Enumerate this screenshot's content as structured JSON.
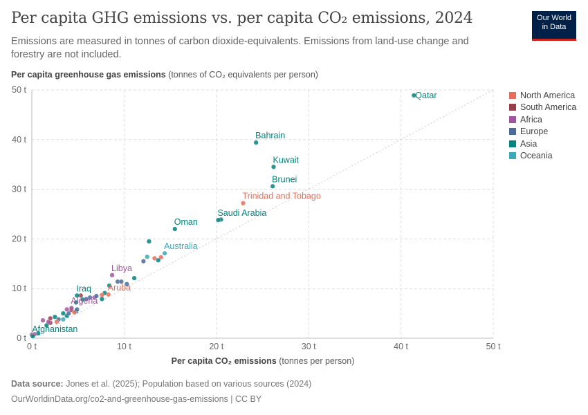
{
  "title": "Per capita GHG emissions vs. per capita CO₂ emissions, 2024",
  "subtitle": "Emissions are measured in tonnes of carbon dioxide-equivalents. Emissions from land-use change and forestry are not included.",
  "logo": {
    "line1": "Our World",
    "line2": "in Data"
  },
  "footer": {
    "source_label": "Data source:",
    "source": " Jones et al. (2025); Population based on various sources (2024)",
    "url": "OurWorldinData.org/co2-and-greenhouse-gas-emissions | CC BY"
  },
  "chart_data": {
    "type": "scatter",
    "title": "Per capita GHG emissions vs. per capita CO₂ emissions, 2024",
    "ylabel_bold": "Per capita greenhouse gas emissions",
    "ylabel_rest": " (tonnes of CO₂ equivalents per person)",
    "xlabel_bold": "Per capita CO₂ emissions",
    "xlabel_rest": " (tonnes per person)",
    "xlim": [
      0,
      50
    ],
    "ylim": [
      0,
      50
    ],
    "xticks": [
      "0 t",
      "10 t",
      "20 t",
      "30 t",
      "40 t",
      "50 t"
    ],
    "yticks": [
      "0 t",
      "10 t",
      "20 t",
      "30 t",
      "40 t",
      "50 t"
    ],
    "grid": true,
    "reference_line": "y = x (dotted)",
    "legend_position": "right",
    "regions": [
      {
        "name": "North America",
        "color": "#e56e5a"
      },
      {
        "name": "South America",
        "color": "#9a3c4a"
      },
      {
        "name": "Africa",
        "color": "#a2559c"
      },
      {
        "name": "Europe",
        "color": "#4c6a9c"
      },
      {
        "name": "Asia",
        "color": "#00847e"
      },
      {
        "name": "Oceania",
        "color": "#38aaba"
      }
    ],
    "points": [
      {
        "label": "Qatar",
        "region": "Asia",
        "x": 41.4,
        "y": 48.9
      },
      {
        "label": "Bahrain",
        "region": "Asia",
        "x": 24.3,
        "y": 39.4
      },
      {
        "label": "Kuwait",
        "region": "Asia",
        "x": 26.2,
        "y": 34.5
      },
      {
        "label": "Brunei",
        "region": "Asia",
        "x": 26.1,
        "y": 30.6
      },
      {
        "label": "Trinidad and Tobago",
        "region": "North America",
        "x": 22.9,
        "y": 27.2
      },
      {
        "label": "Saudi Arabia",
        "region": "Asia",
        "x": 20.2,
        "y": 23.8
      },
      {
        "label": "",
        "region": "Asia",
        "x": 20.5,
        "y": 23.9
      },
      {
        "label": "Oman",
        "region": "Asia",
        "x": 15.5,
        "y": 22.0
      },
      {
        "label": "Australia",
        "region": "Oceania",
        "x": 14.4,
        "y": 17.1
      },
      {
        "label": "Libya",
        "region": "Africa",
        "x": 8.7,
        "y": 12.7
      },
      {
        "label": "Aruba",
        "region": "North America",
        "x": 8.3,
        "y": 8.8
      },
      {
        "label": "Iraq",
        "region": "Asia",
        "x": 4.9,
        "y": 8.6
      },
      {
        "label": "Algeria",
        "region": "Africa",
        "x": 4.3,
        "y": 6.1
      },
      {
        "label": "Afghanistan",
        "region": "Asia",
        "x": 0.1,
        "y": 0.4
      },
      {
        "label": "",
        "region": "Asia",
        "x": 12.7,
        "y": 19.5
      },
      {
        "label": "",
        "region": "Oceania",
        "x": 12.5,
        "y": 16.4
      },
      {
        "label": "",
        "region": "Europe",
        "x": 12.1,
        "y": 15.5
      },
      {
        "label": "",
        "region": "North America",
        "x": 13.3,
        "y": 16.1
      },
      {
        "label": "",
        "region": "North America",
        "x": 14.0,
        "y": 16.3
      },
      {
        "label": "",
        "region": "Asia",
        "x": 13.7,
        "y": 15.7
      },
      {
        "label": "",
        "region": "Asia",
        "x": 11.1,
        "y": 12.1
      },
      {
        "label": "",
        "region": "Europe",
        "x": 9.3,
        "y": 11.4
      },
      {
        "label": "",
        "region": "Europe",
        "x": 9.7,
        "y": 11.4
      },
      {
        "label": "",
        "region": "Europe",
        "x": 10.3,
        "y": 10.9
      },
      {
        "label": "",
        "region": "Asia",
        "x": 8.4,
        "y": 10.6
      },
      {
        "label": "",
        "region": "Asia",
        "x": 7.9,
        "y": 9.1
      },
      {
        "label": "",
        "region": "North America",
        "x": 7.6,
        "y": 8.7
      },
      {
        "label": "",
        "region": "Asia",
        "x": 7.6,
        "y": 7.9
      },
      {
        "label": "",
        "region": "Africa",
        "x": 6.8,
        "y": 8.2
      },
      {
        "label": "",
        "region": "Europe",
        "x": 6.3,
        "y": 8.2
      },
      {
        "label": "",
        "region": "Europe",
        "x": 5.9,
        "y": 7.9
      },
      {
        "label": "",
        "region": "South America",
        "x": 5.3,
        "y": 8.6
      },
      {
        "label": "",
        "region": "Asia",
        "x": 4.8,
        "y": 7.2
      },
      {
        "label": "",
        "region": "Africa",
        "x": 3.8,
        "y": 5.8
      },
      {
        "label": "",
        "region": "South America",
        "x": 4.3,
        "y": 5.7
      },
      {
        "label": "",
        "region": "Asia",
        "x": 3.4,
        "y": 5.0
      },
      {
        "label": "",
        "region": "Asia",
        "x": 2.5,
        "y": 4.3
      },
      {
        "label": "",
        "region": "South America",
        "x": 2.0,
        "y": 4.0
      },
      {
        "label": "",
        "region": "Africa",
        "x": 1.2,
        "y": 3.6
      },
      {
        "label": "",
        "region": "Europe",
        "x": 2.9,
        "y": 3.8
      },
      {
        "label": "",
        "region": "Asia",
        "x": 3.8,
        "y": 4.5
      },
      {
        "label": "",
        "region": "Asia",
        "x": 4.8,
        "y": 5.4
      },
      {
        "label": "",
        "region": "South America",
        "x": 2.0,
        "y": 3.1
      },
      {
        "label": "",
        "region": "Asia",
        "x": 1.6,
        "y": 2.6
      },
      {
        "label": "",
        "region": "Africa",
        "x": 1.8,
        "y": 3.3
      },
      {
        "label": "",
        "region": "North America",
        "x": 2.7,
        "y": 3.3
      },
      {
        "label": "",
        "region": "Oceania",
        "x": 3.4,
        "y": 3.8
      },
      {
        "label": "",
        "region": "Europe",
        "x": 4.0,
        "y": 5.0
      },
      {
        "label": "",
        "region": "North America",
        "x": 4.6,
        "y": 5.2
      },
      {
        "label": "",
        "region": "Europe",
        "x": 4.9,
        "y": 5.8
      },
      {
        "label": "",
        "region": "Africa",
        "x": 0.0,
        "y": 0.7
      },
      {
        "label": "",
        "region": "Africa",
        "x": 0.3,
        "y": 0.8
      },
      {
        "label": "",
        "region": "Asia",
        "x": 0.7,
        "y": 1.0
      },
      {
        "label": "",
        "region": "Asia",
        "x": 5.5,
        "y": 7.8
      },
      {
        "label": "",
        "region": "Europe",
        "x": 7.0,
        "y": 8.5
      }
    ]
  }
}
